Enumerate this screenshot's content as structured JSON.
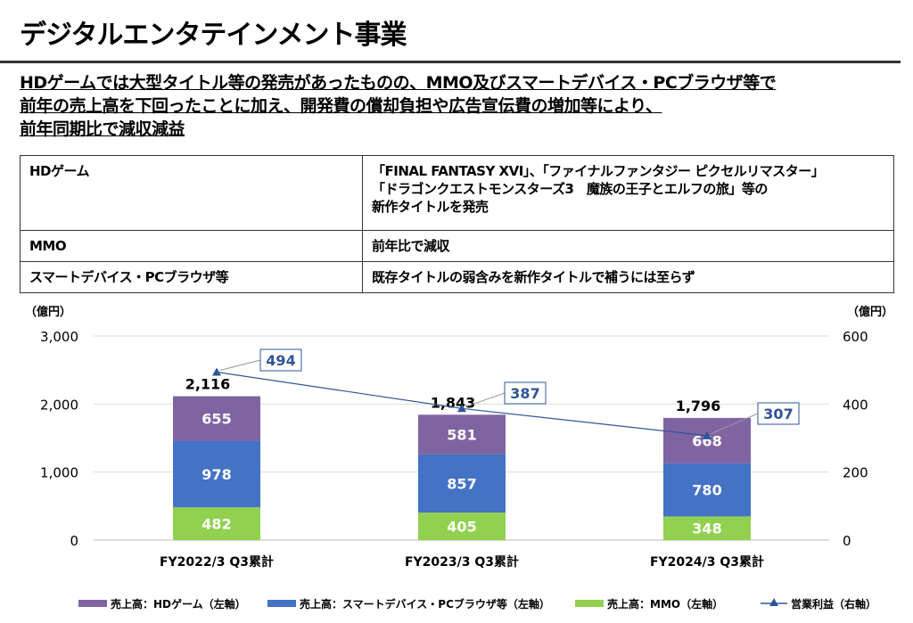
{
  "title": "デジタルエンタテインメント事業",
  "summary": [
    "HDゲームでは大型タイトル等の発売があったものの、MMO及びスマートデバイス・PCブラウザ等で",
    "前年の売上高を下回ったことに加え、開発費の償却負担や広告宣伝費の増加等により、",
    "前年同期比で減収減益"
  ],
  "table": [
    {
      "segment": "HDゲーム",
      "lines": [
        "「FINAL FANTASY XVI」、「ファイナルファンタジー ピクセルリマスター」",
        "「ドラゴンクエストモンスターズ3　魔族の王子とエルフの旅」等の",
        "新作タイトルを発売"
      ]
    },
    {
      "segment": "MMO",
      "lines": [
        "前年比で減収"
      ]
    },
    {
      "segment": "スマートデバイス・PCブラウザ等",
      "lines": [
        "既存タイトルの弱含みを新作タイトルで補うには至らず"
      ]
    }
  ],
  "chart_data": {
    "type": "bar",
    "stacked": true,
    "categories": [
      "FY2022/3 Q3累計",
      "FY2023/3 Q3累計",
      "FY2024/3 Q3累計"
    ],
    "left_unit": "（億円）",
    "right_unit": "（億円）",
    "ylim": [
      0,
      3000
    ],
    "yticks": [
      "0",
      "1,000",
      "2,000",
      "3,000"
    ],
    "y2lim": [
      0,
      600
    ],
    "y2ticks": [
      "0",
      "200",
      "400",
      "600"
    ],
    "grid": true,
    "legend_position": "bottom",
    "series": [
      {
        "name": "売上高：MMO（左軸）",
        "color": "#92D050",
        "values": [
          482,
          405,
          348
        ],
        "labels": [
          "482",
          "405",
          "348"
        ]
      },
      {
        "name": "売上高：スマートデバイス・PCブラウザ等（左軸）",
        "color": "#4472C4",
        "values": [
          978,
          857,
          780
        ],
        "labels": [
          "978",
          "857",
          "780"
        ]
      },
      {
        "name": "売上高：HDゲーム（左軸）",
        "color": "#8064A2",
        "values": [
          655,
          581,
          668
        ],
        "labels": [
          "655",
          "581",
          "668"
        ]
      }
    ],
    "totals": [
      "2,116",
      "1,843",
      "1,796"
    ],
    "total_values": [
      2116,
      1843,
      1796
    ],
    "line": {
      "name": "営業利益（右軸）",
      "color": "#2F5597",
      "values": [
        494,
        387,
        307
      ],
      "labels": [
        "494",
        "387",
        "307"
      ]
    },
    "legend_order": [
      "売上高：HDゲーム（左軸）",
      "売上高：スマートデバイス・PCブラウザ等（左軸）",
      "売上高：MMO（左軸）",
      "営業利益（右軸）"
    ]
  }
}
